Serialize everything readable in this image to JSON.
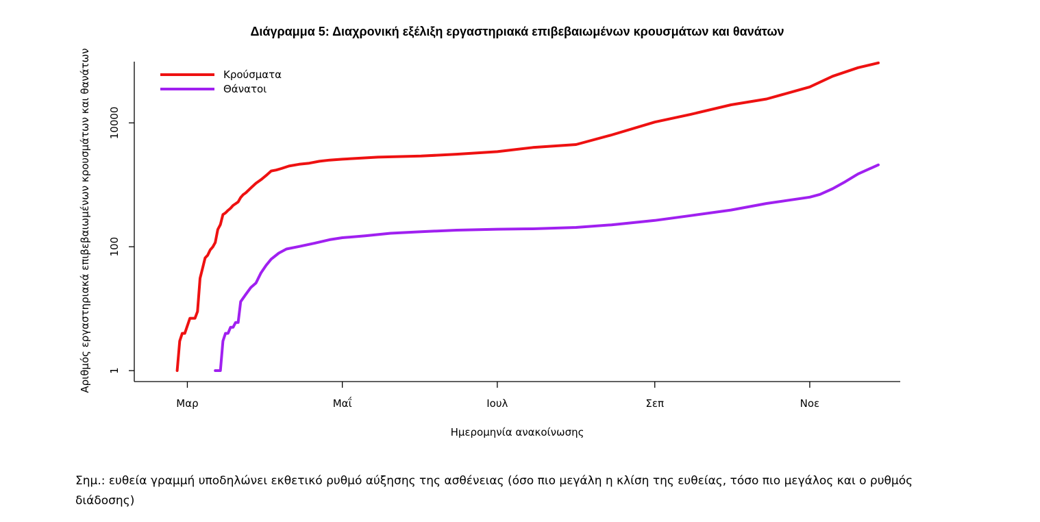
{
  "chart_data": {
    "type": "line",
    "title": "Διάγραμμα 5: Διαχρονική εξέλιξη εργαστηριακά επιβεβαιωμένων κρουσμάτων και θανάτων",
    "xlabel": "Ημερομηνία ανακοίνωσης",
    "ylabel": "Αριθμός εργαστηριακά επιβεβαιωμένων κρουσμάτων και θανάτων",
    "y_scale": "log",
    "ylim": [
      1,
      100000
    ],
    "xlim": [
      "2020-02-11",
      "2020-12-05"
    ],
    "y_ticks": [
      {
        "value": 1,
        "label": "1"
      },
      {
        "value": 100,
        "label": "100"
      },
      {
        "value": 10000,
        "label": "10000"
      }
    ],
    "x_ticks": [
      {
        "value": "2020-03-01",
        "label": "Μαρ"
      },
      {
        "value": "2020-05-01",
        "label": "Μαΐ"
      },
      {
        "value": "2020-07-01",
        "label": "Ιουλ"
      },
      {
        "value": "2020-09-01",
        "label": "Σεπ"
      },
      {
        "value": "2020-11-01",
        "label": "Νοε"
      }
    ],
    "grid": false,
    "legend_position": "top-left",
    "series": [
      {
        "name": "Κρούσματα",
        "color": "#ee1111",
        "points": [
          [
            "2020-02-26",
            1
          ],
          [
            "2020-02-27",
            3
          ],
          [
            "2020-02-28",
            4
          ],
          [
            "2020-02-29",
            4
          ],
          [
            "2020-03-02",
            7
          ],
          [
            "2020-03-04",
            7
          ],
          [
            "2020-03-05",
            9
          ],
          [
            "2020-03-06",
            31
          ],
          [
            "2020-03-07",
            45
          ],
          [
            "2020-03-08",
            66
          ],
          [
            "2020-03-09",
            73
          ],
          [
            "2020-03-10",
            89
          ],
          [
            "2020-03-11",
            99
          ],
          [
            "2020-03-12",
            117
          ],
          [
            "2020-03-13",
            190
          ],
          [
            "2020-03-14",
            228
          ],
          [
            "2020-03-15",
            331
          ],
          [
            "2020-03-16",
            352
          ],
          [
            "2020-03-17",
            387
          ],
          [
            "2020-03-18",
            418
          ],
          [
            "2020-03-19",
            464
          ],
          [
            "2020-03-20",
            495
          ],
          [
            "2020-03-21",
            530
          ],
          [
            "2020-03-22",
            624
          ],
          [
            "2020-03-23",
            695
          ],
          [
            "2020-03-24",
            743
          ],
          [
            "2020-03-26",
            892
          ],
          [
            "2020-03-28",
            1061
          ],
          [
            "2020-03-30",
            1212
          ],
          [
            "2020-04-01",
            1415
          ],
          [
            "2020-04-03",
            1673
          ],
          [
            "2020-04-05",
            1735
          ],
          [
            "2020-04-07",
            1832
          ],
          [
            "2020-04-10",
            2011
          ],
          [
            "2020-04-14",
            2145
          ],
          [
            "2020-04-18",
            2235
          ],
          [
            "2020-04-22",
            2401
          ],
          [
            "2020-04-26",
            2506
          ],
          [
            "2020-05-01",
            2591
          ],
          [
            "2020-05-15",
            2800
          ],
          [
            "2020-06-01",
            2917
          ],
          [
            "2020-06-15",
            3121
          ],
          [
            "2020-07-01",
            3432
          ],
          [
            "2020-07-15",
            4012
          ],
          [
            "2020-08-01",
            4477
          ],
          [
            "2020-08-15",
            6381
          ],
          [
            "2020-09-01",
            10317
          ],
          [
            "2020-09-15",
            13666
          ],
          [
            "2020-10-01",
            19613
          ],
          [
            "2020-10-15",
            24302
          ],
          [
            "2020-11-01",
            38054
          ],
          [
            "2020-11-10",
            56698
          ],
          [
            "2020-11-20",
            78000
          ],
          [
            "2020-11-28",
            93000
          ]
        ]
      },
      {
        "name": "Θάνατοι",
        "color": "#a020f0",
        "points": [
          [
            "2020-03-12",
            1
          ],
          [
            "2020-03-14",
            1
          ],
          [
            "2020-03-15",
            3
          ],
          [
            "2020-03-16",
            4
          ],
          [
            "2020-03-17",
            4
          ],
          [
            "2020-03-18",
            5
          ],
          [
            "2020-03-19",
            5
          ],
          [
            "2020-03-20",
            6
          ],
          [
            "2020-03-21",
            6
          ],
          [
            "2020-03-22",
            13
          ],
          [
            "2020-03-24",
            17
          ],
          [
            "2020-03-26",
            22
          ],
          [
            "2020-03-28",
            26
          ],
          [
            "2020-03-30",
            38
          ],
          [
            "2020-04-01",
            50
          ],
          [
            "2020-04-03",
            63
          ],
          [
            "2020-04-06",
            79
          ],
          [
            "2020-04-09",
            92
          ],
          [
            "2020-04-14",
            101
          ],
          [
            "2020-04-20",
            114
          ],
          [
            "2020-04-26",
            130
          ],
          [
            "2020-05-01",
            140
          ],
          [
            "2020-05-10",
            150
          ],
          [
            "2020-05-20",
            165
          ],
          [
            "2020-06-01",
            175
          ],
          [
            "2020-06-15",
            185
          ],
          [
            "2020-07-01",
            192
          ],
          [
            "2020-07-15",
            195
          ],
          [
            "2020-08-01",
            205
          ],
          [
            "2020-08-15",
            226
          ],
          [
            "2020-09-01",
            266
          ],
          [
            "2020-09-15",
            318
          ],
          [
            "2020-10-01",
            392
          ],
          [
            "2020-10-15",
            500
          ],
          [
            "2020-11-01",
            632
          ],
          [
            "2020-11-05",
            700
          ],
          [
            "2020-11-10",
            864
          ],
          [
            "2020-11-15",
            1125
          ],
          [
            "2020-11-20",
            1500
          ],
          [
            "2020-11-28",
            2100
          ]
        ]
      }
    ]
  },
  "note": "Σημ.: ευθεία γραμμή υποδηλώνει εκθετικό ρυθμό αύξησης της ασθένειας (όσο πιο μεγάλη η κλίση της ευθείας, τόσο πιο μεγάλος και ο ρυθμός διάδοσης)"
}
